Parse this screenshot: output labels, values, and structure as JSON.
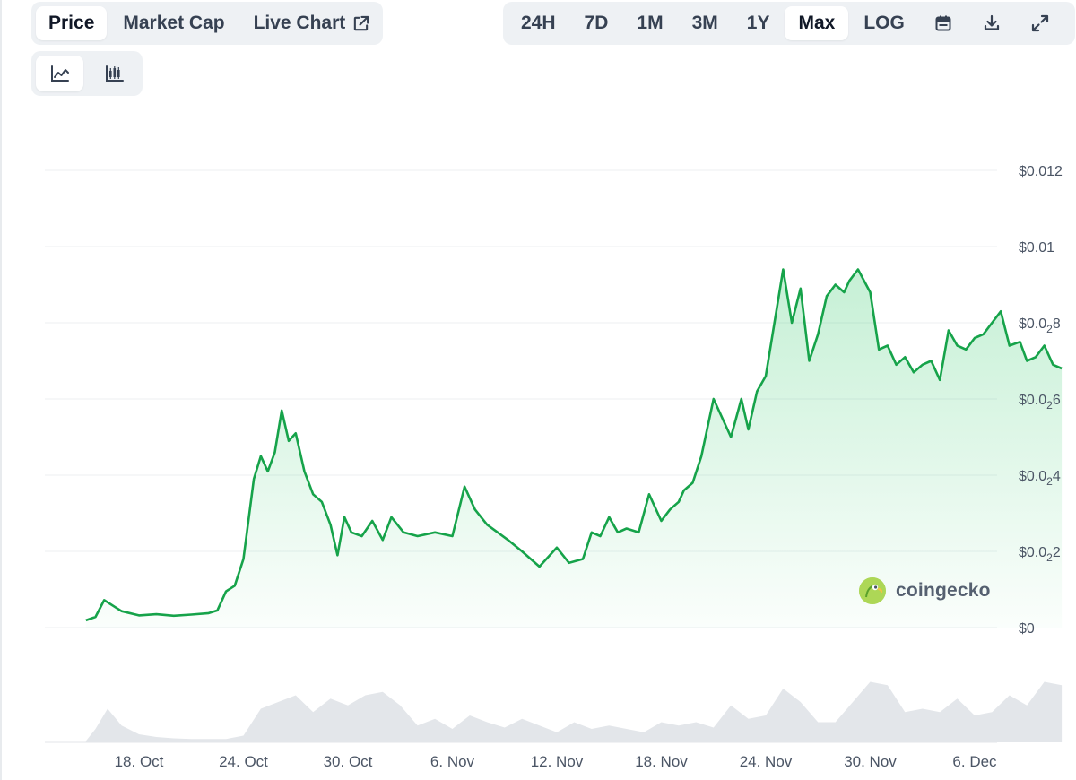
{
  "tabs": [
    {
      "label": "Price",
      "active": true
    },
    {
      "label": "Market Cap",
      "active": false
    },
    {
      "label": "Live Chart",
      "active": false
    }
  ],
  "ranges": [
    {
      "label": "24H",
      "active": false
    },
    {
      "label": "7D",
      "active": false
    },
    {
      "label": "1M",
      "active": false
    },
    {
      "label": "3M",
      "active": false
    },
    {
      "label": "1Y",
      "active": false
    },
    {
      "label": "Max",
      "active": true
    },
    {
      "label": "LOG",
      "active": false
    }
  ],
  "tool_icons": [
    "calendar-icon",
    "download-icon",
    "fullscreen-icon"
  ],
  "chart_type_icons": [
    "line-chart-icon",
    "candlestick-chart-icon"
  ],
  "brand": {
    "name": "coingecko"
  },
  "colors": {
    "line": "#16a34a",
    "area_top": "#22c55e",
    "grid": "#eceff2",
    "volume": "#e3e6ea",
    "segment_bg": "#eef1f4"
  },
  "chart_data": {
    "type": "area",
    "x_ticks": [
      "18. Oct",
      "24. Oct",
      "30. Oct",
      "6. Nov",
      "12. Nov",
      "18. Nov",
      "24. Nov",
      "30. Nov",
      "6. Dec"
    ],
    "y_ticks": [
      {
        "value": 0,
        "label": "$0"
      },
      {
        "value": 0.002,
        "prefix": "$0.0",
        "sub": "2",
        "suffix": "2"
      },
      {
        "value": 0.004,
        "prefix": "$0.0",
        "sub": "2",
        "suffix": "4"
      },
      {
        "value": 0.006,
        "prefix": "$0.0",
        "sub": "2",
        "suffix": "6"
      },
      {
        "value": 0.008,
        "prefix": "$0.0",
        "sub": "2",
        "suffix": "8"
      },
      {
        "value": 0.01,
        "label": "$0.01"
      },
      {
        "value": 0.012,
        "label": "$0.012"
      }
    ],
    "ylim": [
      0,
      0.012
    ],
    "grid": true,
    "series": [
      {
        "x": [
          -3.05,
          -2.5,
          -2.0,
          -1.0,
          0,
          1,
          2,
          3,
          4,
          4.5,
          5,
          5.5,
          6,
          6.6,
          7,
          7.4,
          7.8,
          8.2,
          8.6,
          9.0,
          9.5,
          10,
          10.5,
          11,
          11.4,
          11.8,
          12.2,
          12.8,
          13.4,
          14.0,
          14.5,
          15.2,
          16.0,
          17,
          18,
          18.7,
          19.3,
          20,
          20.6,
          21.2,
          22,
          23,
          24,
          24.7,
          25.5,
          26,
          26.5,
          27,
          27.5,
          28,
          28.7,
          29.3,
          30,
          30.5,
          31,
          31.3,
          31.8,
          32.3,
          33,
          34,
          34.6,
          35,
          35.5,
          36,
          36.5,
          37,
          37.5,
          38,
          38.5,
          39,
          39.5,
          40,
          40.5,
          40.8,
          41.3,
          42,
          42.5,
          43,
          43.5,
          44,
          44.5,
          45,
          45.5,
          46,
          46.5,
          47,
          47.5,
          48,
          48.5,
          49,
          49.5,
          50,
          50.6,
          51,
          51.5,
          52,
          52.5,
          53
        ],
        "values": [
          0.00019,
          0.00028,
          0.00072,
          0.00043,
          0.00032,
          0.00035,
          0.00031,
          0.00034,
          0.00038,
          0.00045,
          0.00095,
          0.0011,
          0.0018,
          0.0039,
          0.0045,
          0.0041,
          0.0046,
          0.0057,
          0.0049,
          0.0051,
          0.0041,
          0.0035,
          0.0033,
          0.0027,
          0.0019,
          0.0029,
          0.0025,
          0.0024,
          0.0028,
          0.0023,
          0.0029,
          0.0025,
          0.0024,
          0.0025,
          0.0024,
          0.0037,
          0.0031,
          0.0027,
          0.0025,
          0.0023,
          0.002,
          0.0016,
          0.0021,
          0.0017,
          0.0018,
          0.0025,
          0.0024,
          0.0029,
          0.0025,
          0.0026,
          0.0025,
          0.0035,
          0.0028,
          0.0031,
          0.0033,
          0.0036,
          0.0038,
          0.0045,
          0.006,
          0.005,
          0.006,
          0.0052,
          0.0062,
          0.0066,
          0.008,
          0.0094,
          0.008,
          0.0089,
          0.007,
          0.0077,
          0.0087,
          0.009,
          0.0088,
          0.0091,
          0.0094,
          0.0088,
          0.0073,
          0.0074,
          0.0069,
          0.0071,
          0.0067,
          0.0069,
          0.007,
          0.0065,
          0.0078,
          0.0074,
          0.0073,
          0.0076,
          0.0077,
          0.008,
          0.0083,
          0.0074,
          0.0075,
          0.007,
          0.0071,
          0.0074,
          0.0069,
          0.0068
        ]
      }
    ],
    "volume": {
      "x": [
        -3.05,
        -2.5,
        -1.8,
        -1,
        0,
        1,
        2,
        3,
        4,
        5,
        6,
        7,
        8,
        9,
        10,
        11,
        12,
        13,
        14,
        15,
        16,
        17,
        18,
        19,
        20,
        21,
        22,
        23,
        24,
        25,
        26,
        27,
        28,
        29,
        30,
        31,
        32,
        33,
        34,
        35,
        36,
        37,
        38,
        39,
        40,
        41,
        42,
        43,
        44,
        45,
        46,
        47,
        48,
        49,
        50,
        51,
        52,
        53
      ],
      "values": [
        0.02,
        0.2,
        0.5,
        0.25,
        0.12,
        0.08,
        0.06,
        0.05,
        0.05,
        0.05,
        0.1,
        0.5,
        0.6,
        0.7,
        0.45,
        0.65,
        0.55,
        0.7,
        0.75,
        0.55,
        0.25,
        0.35,
        0.2,
        0.4,
        0.3,
        0.22,
        0.35,
        0.25,
        0.15,
        0.3,
        0.2,
        0.25,
        0.2,
        0.15,
        0.3,
        0.25,
        0.3,
        0.22,
        0.55,
        0.35,
        0.4,
        0.8,
        0.6,
        0.3,
        0.3,
        0.6,
        0.9,
        0.85,
        0.45,
        0.5,
        0.45,
        0.65,
        0.4,
        0.45,
        0.7,
        0.55,
        0.9,
        0.85
      ]
    }
  }
}
